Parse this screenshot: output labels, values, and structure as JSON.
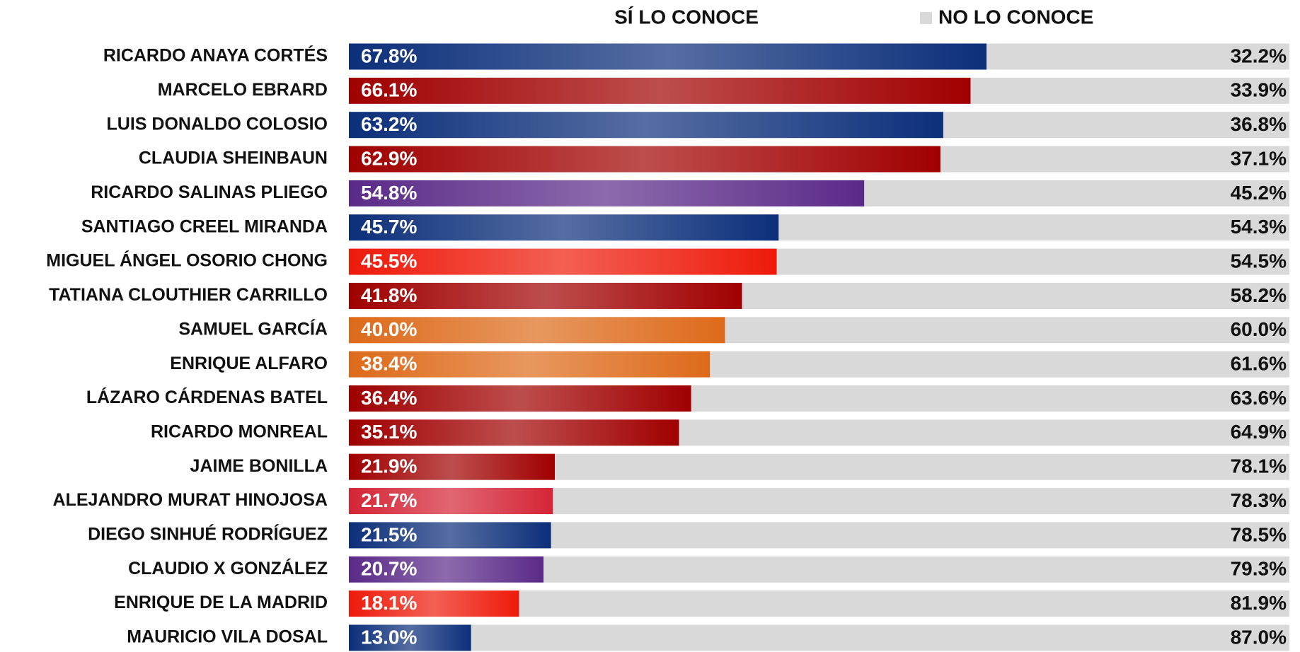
{
  "chart_data": {
    "type": "stacked-barh",
    "categories": [
      "RICARDO ANAYA CORTÉS",
      "MARCELO EBRARD",
      "LUIS DONALDO COLOSIO",
      "CLAUDIA SHEINBAUN",
      "RICARDO SALINAS PLIEGO",
      "SANTIAGO CREEL MIRANDA",
      "MIGUEL ÁNGEL OSORIO CHONG",
      "TATIANA CLOUTHIER CARRILLO",
      "SAMUEL GARCÍA",
      "ENRIQUE ALFARO",
      "LÁZARO CÁRDENAS BATEL",
      "RICARDO MONREAL",
      "JAIME BONILLA",
      "ALEJANDRO MURAT HINOJOSA",
      "DIEGO SINHUÉ RODRÍGUEZ",
      "CLAUDIO X GONZÁLEZ",
      "ENRIQUE DE LA MADRID",
      "MAURICIO VILA DOSAL"
    ],
    "series": [
      {
        "name": "SÍ LO CONOCE",
        "colors": [
          "#0c2f7a",
          "#a00000",
          "#0c2f7a",
          "#a00000",
          "#5a2a88",
          "#0c2f7a",
          "#ee1a0a",
          "#a00000",
          "#dd6a1a",
          "#dd6a1a",
          "#a00000",
          "#a00000",
          "#a00000",
          "#d42535",
          "#0c2f7a",
          "#5a2a88",
          "#ee1a0a",
          "#0c2f7a"
        ],
        "values": [
          67.8,
          66.1,
          63.2,
          62.9,
          54.8,
          45.7,
          45.5,
          41.8,
          40.0,
          38.4,
          36.4,
          35.1,
          21.9,
          21.7,
          21.5,
          20.7,
          18.1,
          13.0
        ],
        "value_labels": [
          "67.8%",
          "66.1%",
          "63.2%",
          "62.9%",
          "54.8%",
          "45.7%",
          "45.5%",
          "41.8%",
          "40.0%",
          "38.4%",
          "36.4%",
          "35.1%",
          "21.9%",
          "21.7%",
          "21.5%",
          "20.7%",
          "18.1%",
          "13.0%"
        ]
      },
      {
        "name": "NO LO CONOCE",
        "color": "#d9d9d9",
        "values": [
          32.2,
          33.9,
          36.8,
          37.1,
          45.2,
          54.3,
          54.5,
          58.2,
          60.0,
          61.6,
          63.6,
          64.9,
          78.1,
          78.3,
          78.5,
          79.3,
          81.9,
          87.0
        ],
        "value_labels": [
          "32.2%",
          "33.9%",
          "36.8%",
          "37.1%",
          "45.2%",
          "54.3%",
          "54.5%",
          "58.2%",
          "60.0%",
          "61.6%",
          "63.6%",
          "64.9%",
          "78.1%",
          "78.3%",
          "78.5%",
          "79.3%",
          "81.9%",
          "87.0%"
        ]
      }
    ],
    "xlim": [
      0,
      100
    ]
  }
}
